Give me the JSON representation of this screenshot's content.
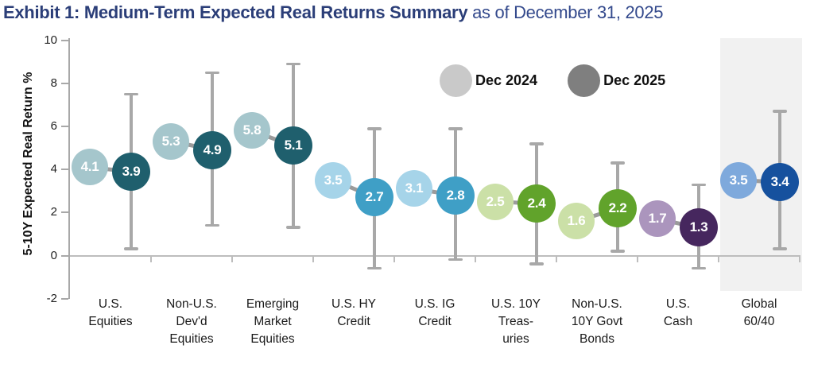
{
  "title": {
    "bold": "Exhibit 1: Medium-Term Expected Real Returns Summary",
    "regular": " as of December 31, 2025"
  },
  "legend": {
    "items": [
      {
        "label": "Dec 2024",
        "color": "#c9c9c9"
      },
      {
        "label": "Dec 2025",
        "color": "#7f7f7f"
      }
    ]
  },
  "chart_data": {
    "type": "scatter",
    "subtype": "paired-dot-plot-with-error-bars",
    "title": "Exhibit 1: Medium-Term Expected Real Returns Summary as of December 31, 2025",
    "ylabel": "5-10Y Expected Real Return %",
    "ylim": [
      -2,
      10
    ],
    "yticks": [
      10,
      8,
      6,
      4,
      2,
      0,
      -2
    ],
    "grid": false,
    "legend_position": "top-center",
    "categories": [
      "U.S. Equities",
      "Non-U.S. Dev'd Equities",
      "Emerging Market Equities",
      "U.S. HY Credit",
      "U.S. IG Credit",
      "U.S. 10Y Treasuries",
      "Non-U.S. 10Y Govt Bonds",
      "U.S. Cash",
      "Global 60/40"
    ],
    "category_label_lines": [
      [
        "U.S.",
        "Equities"
      ],
      [
        "Non-U.S.",
        "Dev'd",
        "Equities"
      ],
      [
        "Emerging",
        "Market",
        "Equities"
      ],
      [
        "U.S. HY",
        "Credit"
      ],
      [
        "U.S. IG",
        "Credit"
      ],
      [
        "U.S. 10Y",
        "Treas-",
        "uries"
      ],
      [
        "Non-U.S.",
        "10Y Govt",
        "Bonds"
      ],
      [
        "U.S.",
        "Cash"
      ],
      [
        "Global",
        "60/40"
      ]
    ],
    "series": [
      {
        "name": "Dec 2024",
        "values": [
          4.1,
          5.3,
          5.8,
          3.5,
          3.1,
          2.5,
          1.6,
          1.7,
          3.5
        ],
        "colors": [
          "#a5c6cc",
          "#a5c6cc",
          "#a5c6cc",
          "#a6d4e9",
          "#a6d4e9",
          "#cbe0a7",
          "#cbe0a7",
          "#ab95bd",
          "#7ea9dc"
        ]
      },
      {
        "name": "Dec 2025",
        "values": [
          3.9,
          4.9,
          5.1,
          2.7,
          2.8,
          2.4,
          2.2,
          1.3,
          3.4
        ],
        "colors": [
          "#1f5f6d",
          "#1f5f6d",
          "#1f5f6d",
          "#3f9fc6",
          "#3f9fc6",
          "#61a32b",
          "#61a32b",
          "#46275e",
          "#16519e"
        ]
      }
    ],
    "error_bars": {
      "applies_to": "Dec 2025",
      "low": [
        0.3,
        1.4,
        1.3,
        -0.6,
        -0.2,
        -0.4,
        0.2,
        -0.6,
        0.3
      ],
      "high": [
        7.5,
        8.5,
        8.9,
        5.9,
        5.9,
        5.2,
        4.3,
        3.3,
        6.7
      ],
      "color": "#a8a8a8"
    },
    "highlight_band": {
      "category": "Global 60/40",
      "index": 8,
      "color": "#f1f1f1"
    },
    "colors": {
      "axis": "#a8a8a8",
      "zero_line": "#bdbdbd",
      "connector": "#9b9b9b",
      "value_text": "#ffffff",
      "title_bold": "#2b3e78",
      "title_regular": "#33498c"
    }
  }
}
